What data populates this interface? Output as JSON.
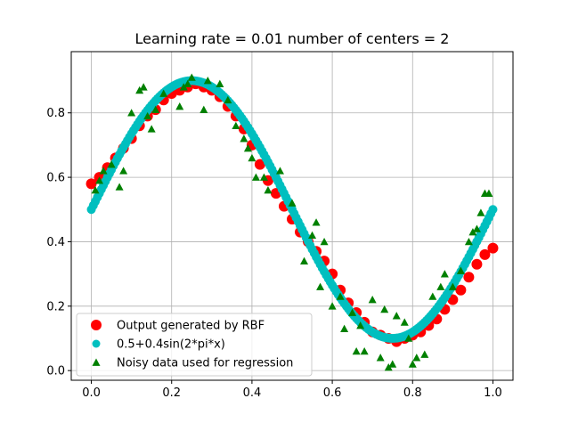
{
  "chart_data": {
    "type": "scatter",
    "title": "Learning rate = 0.01 number of centers = 2",
    "xlabel": "",
    "ylabel": "",
    "xlim": [
      -0.05,
      1.05
    ],
    "ylim": [
      -0.03,
      0.99
    ],
    "x_ticks": [
      "0.0",
      "0.2",
      "0.4",
      "0.6",
      "0.8",
      "1.0"
    ],
    "x_tick_values": [
      0.0,
      0.2,
      0.4,
      0.6,
      0.8,
      1.0
    ],
    "y_ticks": [
      "0.0",
      "0.2",
      "0.4",
      "0.6",
      "0.8"
    ],
    "y_tick_values": [
      0.0,
      0.2,
      0.4,
      0.6,
      0.8
    ],
    "grid": true,
    "legend_position": "lower-left",
    "series": [
      {
        "name": "Output generated by RBF",
        "marker": "circle-large",
        "color": "#ff0000",
        "x": [
          0.0,
          0.02,
          0.04,
          0.06,
          0.08,
          0.1,
          0.12,
          0.14,
          0.16,
          0.18,
          0.2,
          0.22,
          0.24,
          0.26,
          0.28,
          0.3,
          0.32,
          0.34,
          0.36,
          0.38,
          0.4,
          0.42,
          0.44,
          0.46,
          0.48,
          0.5,
          0.52,
          0.54,
          0.56,
          0.58,
          0.6,
          0.62,
          0.64,
          0.66,
          0.68,
          0.7,
          0.72,
          0.74,
          0.76,
          0.78,
          0.8,
          0.82,
          0.84,
          0.86,
          0.88,
          0.9,
          0.92,
          0.94,
          0.96,
          0.98,
          1.0
        ],
        "y": [
          0.58,
          0.6,
          0.63,
          0.66,
          0.69,
          0.72,
          0.76,
          0.79,
          0.81,
          0.84,
          0.86,
          0.87,
          0.88,
          0.89,
          0.88,
          0.87,
          0.85,
          0.82,
          0.79,
          0.75,
          0.7,
          0.64,
          0.59,
          0.55,
          0.51,
          0.47,
          0.43,
          0.4,
          0.37,
          0.34,
          0.3,
          0.25,
          0.21,
          0.18,
          0.15,
          0.12,
          0.11,
          0.1,
          0.09,
          0.1,
          0.11,
          0.12,
          0.14,
          0.16,
          0.19,
          0.22,
          0.25,
          0.29,
          0.33,
          0.36,
          0.38
        ]
      },
      {
        "name": "0.5+0.4sin(2*pi*x)",
        "marker": "circle-dense",
        "color": "#00bfbf",
        "function": "0.5+0.4*sin(2*pi*x)",
        "x_range": [
          0.0,
          1.0
        ]
      },
      {
        "name": "Noisy data used for regression",
        "marker": "triangle",
        "color": "#008000",
        "x": [
          0.01,
          0.02,
          0.03,
          0.05,
          0.07,
          0.08,
          0.1,
          0.12,
          0.13,
          0.14,
          0.15,
          0.16,
          0.18,
          0.22,
          0.23,
          0.24,
          0.25,
          0.28,
          0.29,
          0.32,
          0.34,
          0.36,
          0.38,
          0.39,
          0.4,
          0.41,
          0.43,
          0.44,
          0.47,
          0.5,
          0.53,
          0.55,
          0.56,
          0.57,
          0.58,
          0.6,
          0.62,
          0.63,
          0.65,
          0.66,
          0.67,
          0.68,
          0.7,
          0.72,
          0.73,
          0.74,
          0.75,
          0.76,
          0.78,
          0.79,
          0.8,
          0.81,
          0.83,
          0.85,
          0.87,
          0.88,
          0.9,
          0.92,
          0.94,
          0.95,
          0.96,
          0.97,
          0.98,
          0.99
        ],
        "y": [
          0.56,
          0.59,
          0.62,
          0.64,
          0.57,
          0.62,
          0.8,
          0.87,
          0.88,
          0.79,
          0.75,
          0.81,
          0.86,
          0.82,
          0.88,
          0.89,
          0.91,
          0.81,
          0.9,
          0.89,
          0.84,
          0.76,
          0.72,
          0.69,
          0.66,
          0.6,
          0.6,
          0.56,
          0.62,
          0.52,
          0.34,
          0.42,
          0.46,
          0.26,
          0.4,
          0.2,
          0.23,
          0.13,
          0.18,
          0.06,
          0.14,
          0.06,
          0.22,
          0.04,
          0.19,
          0.01,
          0.02,
          0.17,
          0.15,
          0.1,
          0.02,
          0.04,
          0.05,
          0.23,
          0.26,
          0.3,
          0.26,
          0.31,
          0.4,
          0.43,
          0.44,
          0.49,
          0.55,
          0.55
        ]
      }
    ]
  }
}
